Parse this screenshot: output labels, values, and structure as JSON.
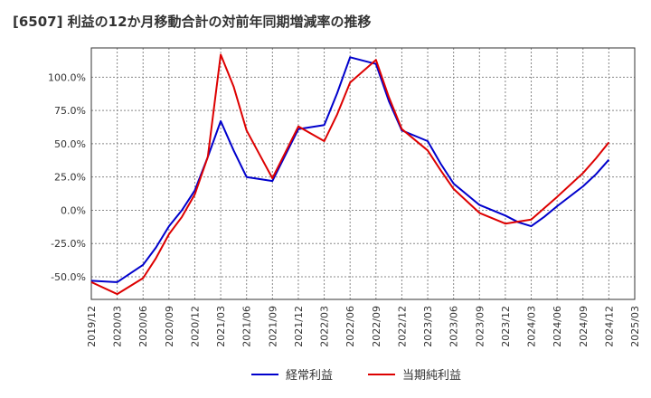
{
  "chart_data": {
    "type": "line",
    "title": "[6507]  利益の12か月移動合計の対前年同期増減率の推移",
    "xlabel": "",
    "ylabel": "",
    "ylim": [
      -67,
      122
    ],
    "y_ticks": [
      100,
      75,
      50,
      25,
      0,
      -25,
      -50
    ],
    "y_tick_labels": [
      "100.0%",
      "75.0%",
      "50.0%",
      "25.0%",
      "0.0%",
      "-25.0%",
      "-50.0%"
    ],
    "x_tick_labels": [
      "2019/12",
      "2020/03",
      "2020/06",
      "2020/09",
      "2020/12",
      "2021/03",
      "2021/06",
      "2021/09",
      "2021/12",
      "2022/03",
      "2022/06",
      "2022/09",
      "2022/12",
      "2023/03",
      "2023/06",
      "2023/09",
      "2023/12",
      "2024/03",
      "2024/06",
      "2024/09",
      "2024/12",
      "2025/03"
    ],
    "grid": true,
    "legend_position": "bottom",
    "series": [
      {
        "name": "経常利益",
        "color": "#0000cc",
        "points": [
          [
            0,
            -53
          ],
          [
            1,
            -54
          ],
          [
            2,
            -41
          ],
          [
            2.5,
            -28
          ],
          [
            3,
            -12
          ],
          [
            3.5,
            0
          ],
          [
            4,
            15
          ],
          [
            4.5,
            40
          ],
          [
            5,
            67
          ],
          [
            5.5,
            45
          ],
          [
            6,
            25
          ],
          [
            7,
            22
          ],
          [
            8,
            61
          ],
          [
            9,
            64
          ],
          [
            9.5,
            88
          ],
          [
            10,
            115
          ],
          [
            11,
            110
          ],
          [
            11.5,
            82
          ],
          [
            12,
            60
          ],
          [
            13,
            52
          ],
          [
            13.5,
            35
          ],
          [
            14,
            20
          ],
          [
            15,
            4
          ],
          [
            16,
            -4
          ],
          [
            16.5,
            -9
          ],
          [
            17,
            -12
          ],
          [
            17.5,
            -5
          ],
          [
            18,
            3
          ],
          [
            19,
            18
          ],
          [
            19.5,
            27
          ],
          [
            20,
            38
          ]
        ]
      },
      {
        "name": "当期純利益",
        "color": "#dd0000",
        "points": [
          [
            0,
            -54
          ],
          [
            1,
            -63
          ],
          [
            2,
            -51
          ],
          [
            2.5,
            -36
          ],
          [
            3,
            -18
          ],
          [
            3.5,
            -5
          ],
          [
            4,
            12
          ],
          [
            4.5,
            40
          ],
          [
            5,
            117
          ],
          [
            5.5,
            93
          ],
          [
            6,
            60
          ],
          [
            6.5,
            42
          ],
          [
            7,
            24
          ],
          [
            8,
            63
          ],
          [
            9,
            52
          ],
          [
            9.5,
            72
          ],
          [
            10,
            96
          ],
          [
            11,
            113
          ],
          [
            11.5,
            85
          ],
          [
            12,
            61
          ],
          [
            13,
            45
          ],
          [
            13.5,
            30
          ],
          [
            14,
            16
          ],
          [
            15,
            -2
          ],
          [
            16,
            -10
          ],
          [
            17,
            -7
          ],
          [
            18,
            10
          ],
          [
            19,
            28
          ],
          [
            19.5,
            39
          ],
          [
            20,
            51
          ]
        ]
      }
    ]
  }
}
